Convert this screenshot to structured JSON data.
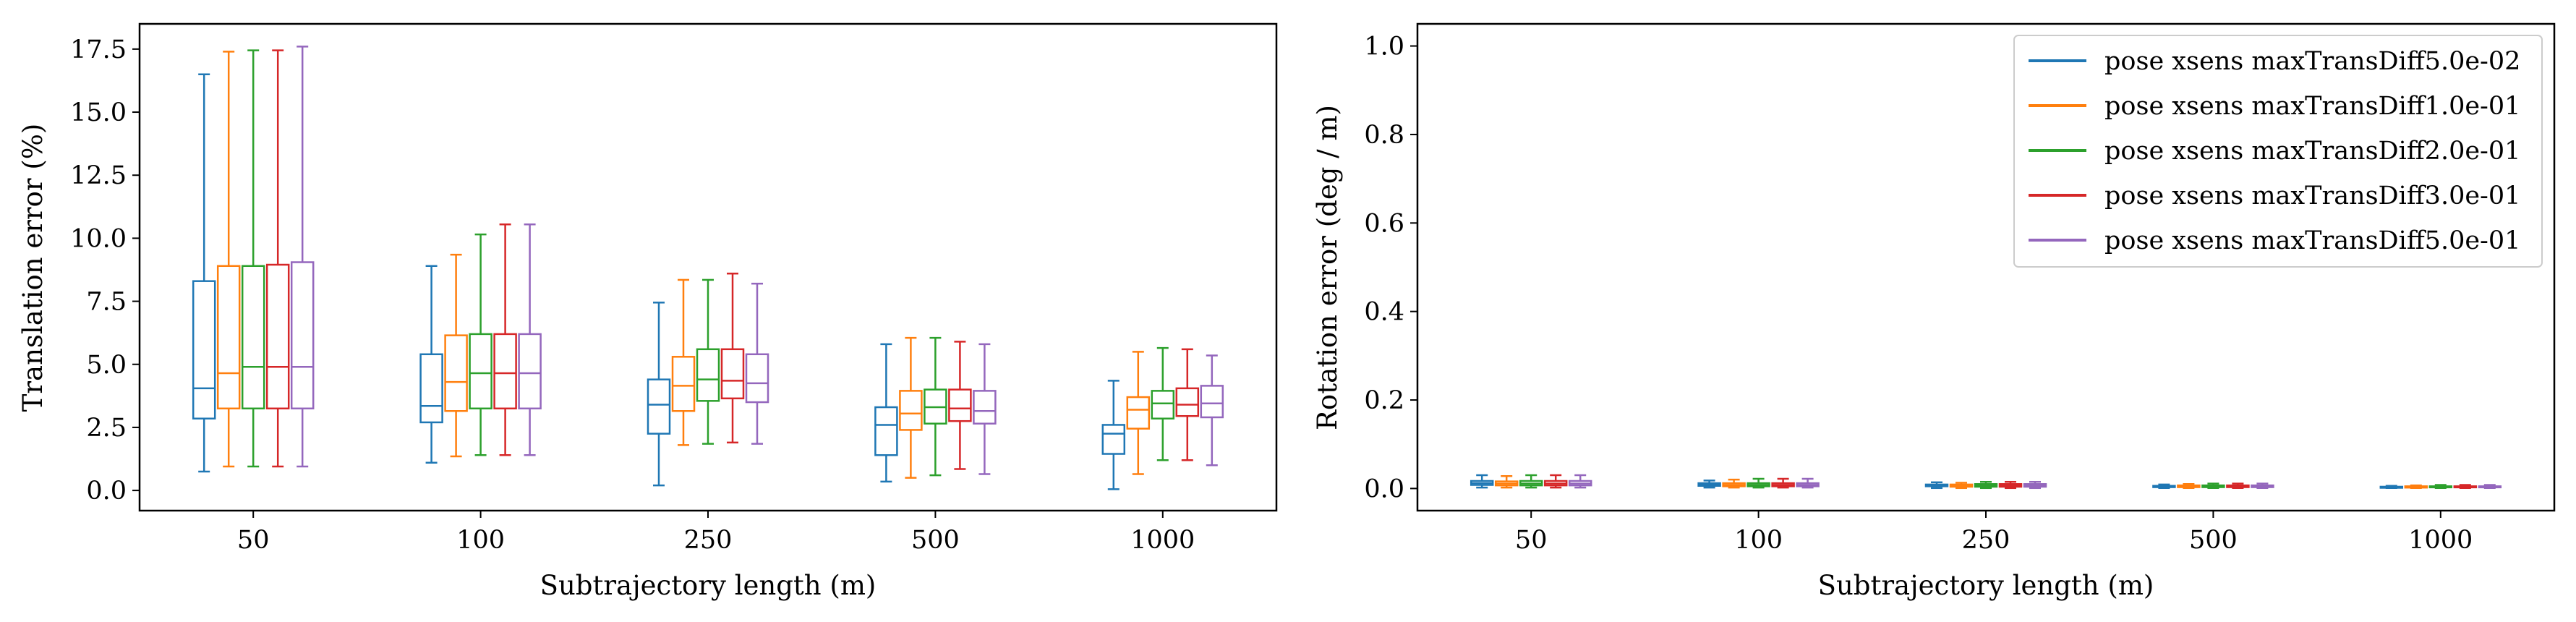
{
  "series": [
    {
      "name": "pose xsens maxTransDiff5.0e-02",
      "color": "#1f77b4"
    },
    {
      "name": "pose xsens maxTransDiff1.0e-01",
      "color": "#ff7f0e"
    },
    {
      "name": "pose xsens maxTransDiff2.0e-01",
      "color": "#2ca02c"
    },
    {
      "name": "pose xsens maxTransDiff3.0e-01",
      "color": "#d62728"
    },
    {
      "name": "pose xsens maxTransDiff5.0e-01",
      "color": "#9467bd"
    }
  ],
  "chart_data": [
    {
      "type": "box",
      "title": "",
      "xlabel": "Subtrajectory length (m)",
      "ylabel": "Translation error (%)",
      "categories": [
        "50",
        "100",
        "250",
        "500",
        "1000"
      ],
      "ylim": [
        -0.8,
        18.5
      ],
      "yticks": [
        0.0,
        2.5,
        5.0,
        7.5,
        10.0,
        12.5,
        15.0,
        17.5
      ],
      "ytick_labels": [
        "0.0",
        "2.5",
        "5.0",
        "7.5",
        "10.0",
        "12.5",
        "15.0",
        "17.5"
      ],
      "legend": "none",
      "series": [
        {
          "name": "pose xsens maxTransDiff5.0e-02",
          "boxes": [
            {
              "whislo": 0.75,
              "q1": 2.85,
              "med": 4.05,
              "q3": 8.3,
              "whishi": 16.5
            },
            {
              "whislo": 1.1,
              "q1": 2.7,
              "med": 3.35,
              "q3": 5.4,
              "whishi": 8.9
            },
            {
              "whislo": 0.2,
              "q1": 2.25,
              "med": 3.4,
              "q3": 4.4,
              "whishi": 7.45
            },
            {
              "whislo": 0.35,
              "q1": 1.4,
              "med": 2.6,
              "q3": 3.3,
              "whishi": 5.8
            },
            {
              "whislo": 0.05,
              "q1": 1.45,
              "med": 2.25,
              "q3": 2.6,
              "whishi": 4.35
            }
          ]
        },
        {
          "name": "pose xsens maxTransDiff1.0e-01",
          "boxes": [
            {
              "whislo": 0.95,
              "q1": 3.25,
              "med": 4.65,
              "q3": 8.9,
              "whishi": 17.4
            },
            {
              "whislo": 1.35,
              "q1": 3.15,
              "med": 4.3,
              "q3": 6.15,
              "whishi": 9.35
            },
            {
              "whislo": 1.8,
              "q1": 3.15,
              "med": 4.15,
              "q3": 5.3,
              "whishi": 8.35
            },
            {
              "whislo": 0.5,
              "q1": 2.4,
              "med": 3.05,
              "q3": 3.95,
              "whishi": 6.05
            },
            {
              "whislo": 0.65,
              "q1": 2.45,
              "med": 3.2,
              "q3": 3.7,
              "whishi": 5.5
            }
          ]
        },
        {
          "name": "pose xsens maxTransDiff2.0e-01",
          "boxes": [
            {
              "whislo": 0.95,
              "q1": 3.25,
              "med": 4.9,
              "q3": 8.9,
              "whishi": 17.45
            },
            {
              "whislo": 1.4,
              "q1": 3.25,
              "med": 4.65,
              "q3": 6.2,
              "whishi": 10.15
            },
            {
              "whislo": 1.85,
              "q1": 3.55,
              "med": 4.4,
              "q3": 5.6,
              "whishi": 8.35
            },
            {
              "whislo": 0.6,
              "q1": 2.65,
              "med": 3.3,
              "q3": 4.0,
              "whishi": 6.05
            },
            {
              "whislo": 1.2,
              "q1": 2.85,
              "med": 3.45,
              "q3": 3.95,
              "whishi": 5.65
            }
          ]
        },
        {
          "name": "pose xsens maxTransDiff3.0e-01",
          "boxes": [
            {
              "whislo": 0.95,
              "q1": 3.25,
              "med": 4.9,
              "q3": 8.95,
              "whishi": 17.45
            },
            {
              "whislo": 1.4,
              "q1": 3.25,
              "med": 4.65,
              "q3": 6.2,
              "whishi": 10.55
            },
            {
              "whislo": 1.9,
              "q1": 3.65,
              "med": 4.35,
              "q3": 5.6,
              "whishi": 8.6
            },
            {
              "whislo": 0.85,
              "q1": 2.75,
              "med": 3.25,
              "q3": 4.0,
              "whishi": 5.9
            },
            {
              "whislo": 1.2,
              "q1": 2.95,
              "med": 3.4,
              "q3": 4.05,
              "whishi": 5.6
            }
          ]
        },
        {
          "name": "pose xsens maxTransDiff5.0e-01",
          "boxes": [
            {
              "whislo": 0.95,
              "q1": 3.25,
              "med": 4.9,
              "q3": 9.05,
              "whishi": 17.6
            },
            {
              "whislo": 1.4,
              "q1": 3.25,
              "med": 4.65,
              "q3": 6.2,
              "whishi": 10.55
            },
            {
              "whislo": 1.85,
              "q1": 3.5,
              "med": 4.25,
              "q3": 5.4,
              "whishi": 8.2
            },
            {
              "whislo": 0.65,
              "q1": 2.65,
              "med": 3.15,
              "q3": 3.95,
              "whishi": 5.8
            },
            {
              "whislo": 1.0,
              "q1": 2.9,
              "med": 3.45,
              "q3": 4.15,
              "whishi": 5.35
            }
          ]
        }
      ]
    },
    {
      "type": "box",
      "title": "",
      "xlabel": "Subtrajectory length (m)",
      "ylabel": "Rotation error (deg / m)",
      "categories": [
        "50",
        "100",
        "250",
        "500",
        "1000"
      ],
      "ylim": [
        -0.05,
        1.05
      ],
      "yticks": [
        0.0,
        0.2,
        0.4,
        0.6,
        0.8,
        1.0
      ],
      "ytick_labels": [
        "0.0",
        "0.2",
        "0.4",
        "0.6",
        "0.8",
        "1.0"
      ],
      "legend": "upper right",
      "series": [
        {
          "name": "pose xsens maxTransDiff5.0e-02",
          "boxes": [
            {
              "whislo": 0.002,
              "q1": 0.008,
              "med": 0.012,
              "q3": 0.017,
              "whishi": 0.03
            },
            {
              "whislo": 0.002,
              "q1": 0.006,
              "med": 0.009,
              "q3": 0.012,
              "whishi": 0.018
            },
            {
              "whislo": 0.001,
              "q1": 0.005,
              "med": 0.007,
              "q3": 0.009,
              "whishi": 0.014
            },
            {
              "whislo": 0.001,
              "q1": 0.003,
              "med": 0.005,
              "q3": 0.006,
              "whishi": 0.009
            },
            {
              "whislo": 0.001,
              "q1": 0.002,
              "med": 0.003,
              "q3": 0.004,
              "whishi": 0.006
            }
          ]
        },
        {
          "name": "pose xsens maxTransDiff1.0e-01",
          "boxes": [
            {
              "whislo": 0.002,
              "q1": 0.007,
              "med": 0.011,
              "q3": 0.016,
              "whishi": 0.028
            },
            {
              "whislo": 0.002,
              "q1": 0.005,
              "med": 0.008,
              "q3": 0.012,
              "whishi": 0.02
            },
            {
              "whislo": 0.001,
              "q1": 0.004,
              "med": 0.007,
              "q3": 0.009,
              "whishi": 0.013
            },
            {
              "whislo": 0.001,
              "q1": 0.003,
              "med": 0.005,
              "q3": 0.007,
              "whishi": 0.01
            },
            {
              "whislo": 0.001,
              "q1": 0.002,
              "med": 0.004,
              "q3": 0.005,
              "whishi": 0.007
            }
          ]
        },
        {
          "name": "pose xsens maxTransDiff2.0e-01",
          "boxes": [
            {
              "whislo": 0.002,
              "q1": 0.007,
              "med": 0.011,
              "q3": 0.017,
              "whishi": 0.03
            },
            {
              "whislo": 0.002,
              "q1": 0.005,
              "med": 0.008,
              "q3": 0.012,
              "whishi": 0.022
            },
            {
              "whislo": 0.001,
              "q1": 0.004,
              "med": 0.007,
              "q3": 0.01,
              "whishi": 0.015
            },
            {
              "whislo": 0.001,
              "q1": 0.003,
              "med": 0.005,
              "q3": 0.007,
              "whishi": 0.011
            },
            {
              "whislo": 0.001,
              "q1": 0.003,
              "med": 0.004,
              "q3": 0.005,
              "whishi": 0.008
            }
          ]
        },
        {
          "name": "pose xsens maxTransDiff3.0e-01",
          "boxes": [
            {
              "whislo": 0.002,
              "q1": 0.007,
              "med": 0.011,
              "q3": 0.017,
              "whishi": 0.03
            },
            {
              "whislo": 0.002,
              "q1": 0.005,
              "med": 0.008,
              "q3": 0.012,
              "whishi": 0.022
            },
            {
              "whislo": 0.001,
              "q1": 0.004,
              "med": 0.007,
              "q3": 0.01,
              "whishi": 0.015
            },
            {
              "whislo": 0.001,
              "q1": 0.003,
              "med": 0.005,
              "q3": 0.007,
              "whishi": 0.011
            },
            {
              "whislo": 0.001,
              "q1": 0.003,
              "med": 0.004,
              "q3": 0.005,
              "whishi": 0.008
            }
          ]
        },
        {
          "name": "pose xsens maxTransDiff5.0e-01",
          "boxes": [
            {
              "whislo": 0.002,
              "q1": 0.007,
              "med": 0.011,
              "q3": 0.017,
              "whishi": 0.03
            },
            {
              "whislo": 0.002,
              "q1": 0.005,
              "med": 0.008,
              "q3": 0.012,
              "whishi": 0.022
            },
            {
              "whislo": 0.001,
              "q1": 0.004,
              "med": 0.007,
              "q3": 0.01,
              "whishi": 0.015
            },
            {
              "whislo": 0.001,
              "q1": 0.003,
              "med": 0.005,
              "q3": 0.007,
              "whishi": 0.011
            },
            {
              "whislo": 0.001,
              "q1": 0.003,
              "med": 0.004,
              "q3": 0.005,
              "whishi": 0.008
            }
          ]
        }
      ]
    }
  ]
}
